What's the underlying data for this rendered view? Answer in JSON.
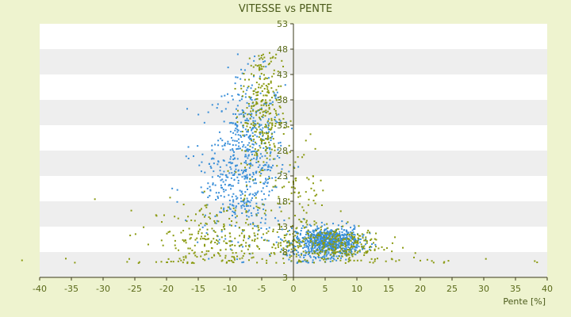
{
  "chart_data": {
    "type": "scatter",
    "title": "VITESSE vs PENTE",
    "xlabel": "Pente [%]",
    "ylabel": "",
    "xlim": [
      -40,
      40
    ],
    "ylim": [
      3,
      53
    ],
    "x_ticks": [
      -40,
      -35,
      -30,
      -25,
      -20,
      -15,
      -10,
      -5,
      0,
      5,
      10,
      15,
      20,
      25,
      30,
      35,
      40
    ],
    "y_ticks": [
      3,
      8,
      13,
      18,
      23,
      28,
      33,
      38,
      43,
      48,
      53
    ],
    "grid": "alternating horizontal bands",
    "legend": "none",
    "colors": {
      "series_blue": "#3a8fd8",
      "series_olive": "#8a9a10",
      "band_light": "#ffffff",
      "band_gray": "#eeeeee",
      "background": "#eef3cf",
      "axis": "#3a3a1a"
    },
    "series": [
      {
        "color_key": "series_blue",
        "clusters": [
          {
            "cx": -7,
            "cy": 27,
            "sx": 2.8,
            "sy": 8,
            "n": 520
          },
          {
            "cx": -11,
            "cy": 20,
            "sx": 3.5,
            "sy": 6,
            "n": 120
          },
          {
            "cx": 5.5,
            "cy": 10,
            "sx": 2.5,
            "sy": 1.4,
            "n": 700
          },
          {
            "cx": 3,
            "cy": 8,
            "sx": 3,
            "sy": 2.5,
            "n": 120
          }
        ]
      },
      {
        "color_key": "series_olive",
        "clusters": [
          {
            "cx": -5,
            "cy": 36,
            "sx": 1.6,
            "sy": 8,
            "n": 320
          },
          {
            "cx": -11,
            "cy": 10,
            "sx": 6,
            "sy": 4,
            "n": 320
          },
          {
            "cx": 6,
            "cy": 9.6,
            "sx": 4,
            "sy": 1.8,
            "n": 300
          },
          {
            "cx": 1.5,
            "cy": 20,
            "sx": 1.8,
            "sy": 5,
            "n": 70
          },
          {
            "cx": 0,
            "cy": 6,
            "sx": 18,
            "sy": 0.5,
            "n": 130
          }
        ]
      }
    ]
  }
}
